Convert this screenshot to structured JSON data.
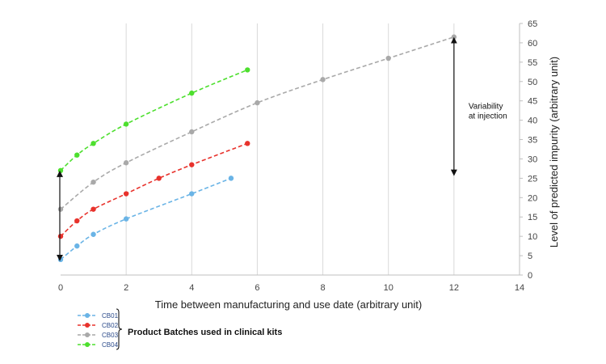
{
  "chart_data": {
    "type": "line",
    "title": "",
    "xlabel": "Time between manufacturing and use date (arbitrary unit)",
    "ylabel": "Level of predicted impurity (arbitrary unit)",
    "xlim": [
      0,
      14
    ],
    "ylim": [
      0,
      65
    ],
    "xticks": [
      "0",
      "2",
      "4",
      "6",
      "8",
      "10",
      "12",
      "14"
    ],
    "yticks": [
      "0",
      "5",
      "10",
      "15",
      "20",
      "25",
      "30",
      "35",
      "40",
      "45",
      "50",
      "55",
      "60",
      "65"
    ],
    "grid": "vertical",
    "legend_position": "bottom-left",
    "series": [
      {
        "name": "CB01",
        "color": "#6ab4e6",
        "x": [
          0,
          0.5,
          1,
          2,
          4,
          5.2
        ],
        "y": [
          4,
          7.5,
          10.5,
          14.5,
          21,
          25
        ]
      },
      {
        "name": "CB02",
        "color": "#e8322c",
        "x": [
          0,
          0.5,
          1,
          2,
          3,
          4,
          5.7
        ],
        "y": [
          10,
          14,
          17,
          21,
          25,
          28.5,
          34
        ]
      },
      {
        "name": "CB03",
        "color": "#a9a9a9",
        "x": [
          0,
          1,
          2,
          4,
          6,
          8,
          10,
          12
        ],
        "y": [
          17,
          24,
          29,
          37,
          44.5,
          50.5,
          56,
          61.5
        ]
      },
      {
        "name": "CB04",
        "color": "#4ddf2e",
        "x": [
          0,
          0.5,
          1,
          2,
          4,
          5.7
        ],
        "y": [
          27,
          31,
          34,
          39,
          47,
          53
        ]
      }
    ],
    "annotations": [
      {
        "text_lines": [
          "Variability",
          "at injection"
        ],
        "x": 12,
        "y_from": 26,
        "y_to": 61.5
      },
      {
        "x": 0,
        "y_from": 4,
        "y_to": 27
      }
    ],
    "legend_group_label": "Product Batches used in clinical kits"
  }
}
